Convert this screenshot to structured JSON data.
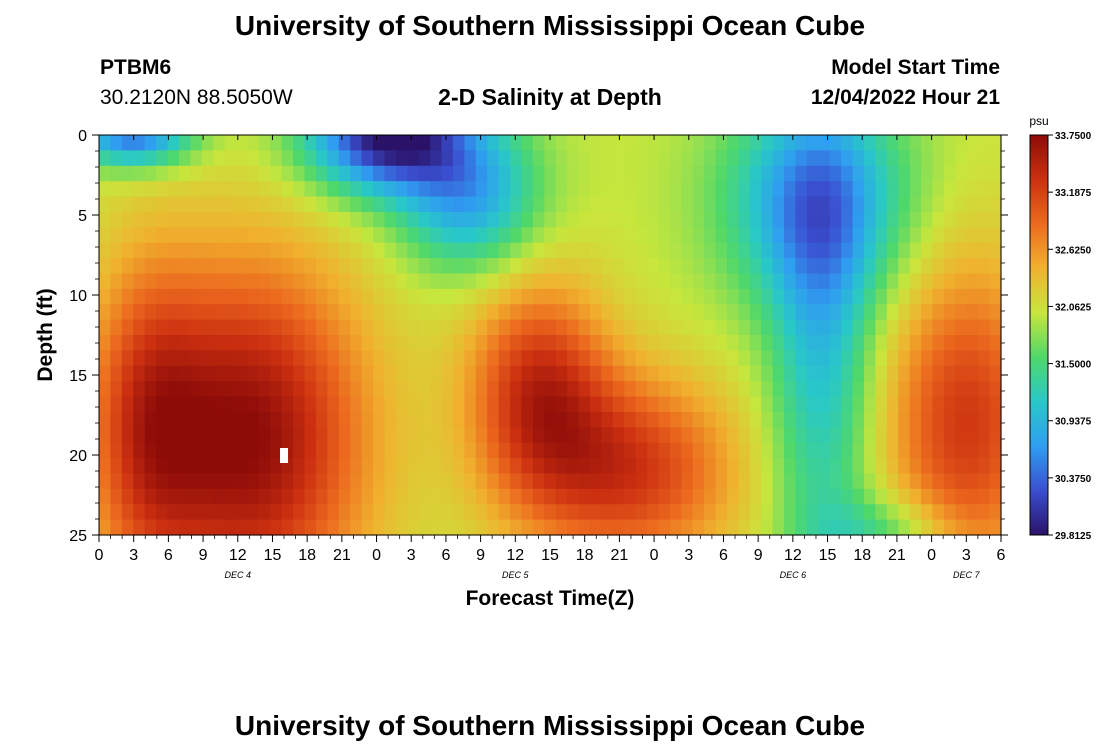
{
  "header": {
    "title": "University of Southern Mississippi Ocean Cube",
    "station_id": "PTBM6",
    "coordinates": "30.2120N  88.5050W",
    "subtitle": "2-D Salinity at Depth",
    "model_start_label": "Model Start Time",
    "model_start_value": "12/04/2022 Hour 21",
    "footer_title": "University of Southern Mississippi Ocean Cube"
  },
  "chart_data": {
    "type": "heatmap",
    "title": "2-D Salinity at Depth",
    "xlabel": "Forecast Time(Z)",
    "ylabel": "Depth (ft)",
    "x_tick_labels": [
      "0",
      "3",
      "6",
      "9",
      "12",
      "15",
      "18",
      "21",
      "0",
      "3",
      "6",
      "9",
      "12",
      "15",
      "18",
      "21",
      "0",
      "3",
      "6",
      "9",
      "12",
      "15",
      "18",
      "21",
      "0",
      "3",
      "6"
    ],
    "x_range_hours": [
      0,
      78
    ],
    "day_labels": [
      {
        "label": "DEC 4",
        "hour": 12
      },
      {
        "label": "DEC 5",
        "hour": 36
      },
      {
        "label": "DEC 6",
        "hour": 60
      },
      {
        "label": "DEC 7",
        "hour": 75
      }
    ],
    "y_ticks": [
      "0",
      "5",
      "10",
      "15",
      "20",
      "25"
    ],
    "y_range_ft": [
      0,
      25
    ],
    "colorbar": {
      "unit": "psu",
      "min": 29.8125,
      "max": 33.75,
      "tick_labels": [
        "33.7500",
        "33.1875",
        "32.6250",
        "32.0625",
        "31.5000",
        "30.9375",
        "30.3750",
        "29.8125"
      ],
      "colors": [
        "#2a1268",
        "#3a4fd0",
        "#2f9ef0",
        "#28c8c8",
        "#4fd86a",
        "#c8e63c",
        "#f0b22e",
        "#ec6a1e",
        "#cc3010",
        "#8e0c08"
      ]
    },
    "grid_resolution": {
      "time_steps": 79,
      "depth_levels": 26
    },
    "salinity_features_psu": [
      {
        "description": "surface fresh layer",
        "hour_start": 0,
        "hour_end": 30,
        "depth_ft": 0,
        "value": 30.4
      },
      {
        "description": "surface minimum",
        "hour": 24,
        "depth_ft": 0,
        "value": 29.9
      },
      {
        "description": "saline core",
        "hour": 14,
        "depth_ft": 20,
        "value": 33.75
      },
      {
        "description": "saline core",
        "hour": 38,
        "depth_ft": 15,
        "value": 33.7
      },
      {
        "description": "saline core",
        "hour": 44,
        "depth_ft": 21,
        "value": 33.65
      },
      {
        "description": "fresh plume",
        "hour": 60,
        "depth_ft": 3,
        "value": 31.0
      },
      {
        "description": "fresh column",
        "hour": 62,
        "depth_ft": 20,
        "value": 32.0
      },
      {
        "description": "late saline layer",
        "hour": 76,
        "depth_ft": 20,
        "value": 33.3
      }
    ],
    "marker": {
      "hour": 16,
      "depth_ft": 20,
      "color": "#ffffff"
    }
  }
}
